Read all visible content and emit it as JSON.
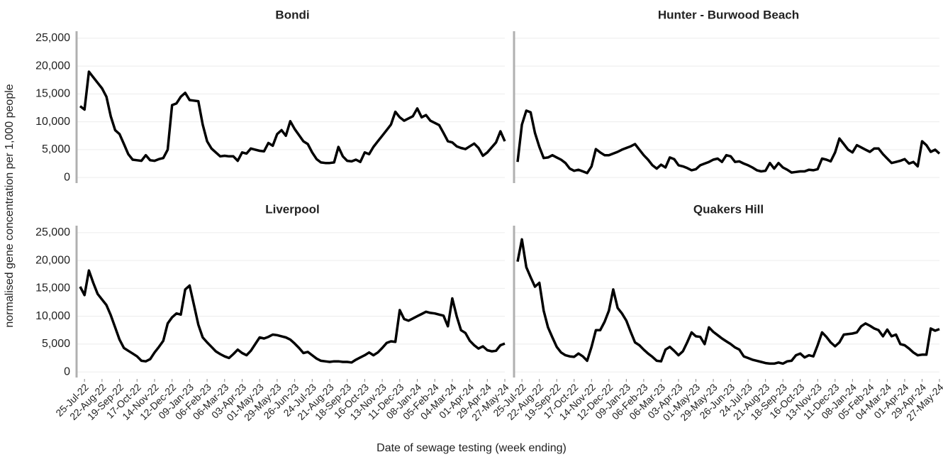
{
  "chart_data": {
    "type": "line",
    "y_label": "normalised gene concentration per 1,000 people",
    "x_label": "Date of sewage testing (week ending)",
    "grid": true,
    "ylim": [
      -1000,
      26000
    ],
    "yticks": [
      0,
      {
        "value": 5000,
        "label": "5,000"
      },
      {
        "value": 10000,
        "label": "10,000"
      },
      {
        "value": 15000,
        "label": "15,000"
      },
      {
        "value": 20000,
        "label": "20,000"
      },
      {
        "value": 25000,
        "label": "25,000"
      }
    ],
    "categories": [
      null,
      "25-Jul-22",
      null,
      null,
      null,
      "22-Aug-22",
      null,
      null,
      null,
      "19-Sep-22",
      null,
      null,
      null,
      "17-Oct-22",
      null,
      null,
      null,
      "14-Nov-22",
      null,
      null,
      null,
      "12-Dec-22",
      null,
      null,
      null,
      "09-Jan-23",
      null,
      null,
      null,
      "06-Feb-23",
      null,
      null,
      null,
      "06-Mar-23",
      null,
      null,
      null,
      "03-Apr-23",
      null,
      null,
      null,
      "01-May-23",
      null,
      null,
      null,
      "29-May-23",
      null,
      null,
      null,
      "26-Jun-23",
      null,
      null,
      null,
      "24-Jul-23",
      null,
      null,
      null,
      "21-Aug-23",
      null,
      null,
      null,
      "18-Sep-23",
      null,
      null,
      null,
      "16-Oct-23",
      null,
      null,
      null,
      "13-Nov-23",
      null,
      null,
      null,
      "11-Dec-23",
      null,
      null,
      null,
      "08-Jan-24",
      null,
      null,
      null,
      "05-Feb-24",
      null,
      null,
      null,
      "04-Mar-24",
      null,
      null,
      null,
      "01-Apr-24",
      null,
      null,
      null,
      "29-Apr-24",
      null,
      null,
      null,
      "27-May-24"
    ],
    "series": [
      {
        "name": "Bondi",
        "color": "#000000",
        "values": [
          12800,
          12200,
          19000,
          18000,
          17000,
          16000,
          14500,
          11000,
          8500,
          7800,
          6000,
          4200,
          3200,
          3100,
          3000,
          4000,
          3100,
          3000,
          3300,
          3500,
          5000,
          13000,
          13300,
          14500,
          15200,
          13900,
          13800,
          13700,
          9500,
          6500,
          5200,
          4500,
          3800,
          3900,
          3800,
          3800,
          3000,
          4500,
          4300,
          5200,
          5000,
          4800,
          4700,
          6200,
          5700,
          7800,
          8500,
          7500,
          10100,
          8700,
          7600,
          6500,
          6000,
          4500,
          3300,
          2700,
          2600,
          2600,
          2700,
          5500,
          3800,
          3000,
          2900,
          3200,
          2800,
          4500,
          4200,
          5500,
          6500,
          7500,
          8500,
          9500,
          11800,
          10800,
          10200,
          10600,
          11000,
          12400,
          10800,
          11200,
          10200,
          9800,
          9400,
          8000,
          6500,
          6300,
          5600,
          5300,
          5100,
          5600,
          6100,
          5300,
          3900,
          4500,
          5400,
          6300,
          8300,
          6500
        ]
      },
      {
        "name": "Hunter - Burwood Beach",
        "color": "#000000",
        "values": [
          2800,
          9500,
          12000,
          11700,
          8000,
          5500,
          3500,
          3600,
          4000,
          3600,
          3200,
          2600,
          1600,
          1200,
          1400,
          1100,
          800,
          2000,
          5100,
          4500,
          4000,
          4000,
          4300,
          4600,
          5000,
          5300,
          5600,
          6000,
          5000,
          4000,
          3200,
          2200,
          1600,
          2300,
          1800,
          3600,
          3300,
          2200,
          2000,
          1700,
          1300,
          1500,
          2200,
          2500,
          2800,
          3200,
          3400,
          2800,
          4000,
          3800,
          2800,
          2900,
          2500,
          2200,
          1800,
          1300,
          1100,
          1200,
          2600,
          1600,
          2600,
          1800,
          1400,
          900,
          1000,
          1100,
          1100,
          1400,
          1300,
          1500,
          3400,
          3200,
          2900,
          4500,
          7000,
          6000,
          5000,
          4500,
          5800,
          5400,
          5000,
          4600,
          5200,
          5200,
          4200,
          3400,
          2600,
          2800,
          3000,
          3300,
          2500,
          2800,
          2000,
          6500,
          5800,
          4600,
          5000,
          4300
        ]
      },
      {
        "name": "Liverpool",
        "color": "#000000",
        "values": [
          15300,
          13800,
          18200,
          16000,
          14000,
          13000,
          12000,
          10200,
          8000,
          5800,
          4300,
          3800,
          3300,
          2800,
          2000,
          1900,
          2300,
          3500,
          4500,
          5600,
          8700,
          9800,
          10500,
          10300,
          14800,
          15500,
          12000,
          8500,
          6200,
          5300,
          4500,
          3700,
          3200,
          2800,
          2500,
          3200,
          4000,
          3400,
          3000,
          3800,
          5000,
          6200,
          6000,
          6300,
          6700,
          6600,
          6400,
          6200,
          5800,
          5100,
          4300,
          3400,
          3600,
          3000,
          2400,
          2000,
          1900,
          1800,
          1900,
          1900,
          1800,
          1800,
          1700,
          2200,
          2600,
          3000,
          3500,
          3000,
          3500,
          4300,
          5200,
          5500,
          5400,
          11100,
          9500,
          9200,
          9600,
          10000,
          10400,
          10800,
          10600,
          10500,
          10300,
          10100,
          8200,
          13200,
          10000,
          7500,
          7000,
          5600,
          4800,
          4200,
          4600,
          3900,
          3700,
          3800,
          4800,
          5100
        ]
      },
      {
        "name": "Quakers Hill",
        "color": "#000000",
        "values": [
          19800,
          23800,
          18800,
          17000,
          15300,
          16000,
          11000,
          8000,
          6200,
          4500,
          3500,
          3000,
          2800,
          2700,
          3300,
          2800,
          2000,
          4500,
          7500,
          7500,
          9000,
          11000,
          14800,
          11500,
          10500,
          9200,
          7200,
          5300,
          4800,
          4000,
          3300,
          2700,
          2000,
          1900,
          4000,
          4500,
          3800,
          3000,
          3700,
          5300,
          7100,
          6400,
          6300,
          5000,
          8000,
          7200,
          6600,
          6000,
          5500,
          5000,
          4400,
          4000,
          2800,
          2500,
          2200,
          2000,
          1800,
          1600,
          1500,
          1500,
          1700,
          1500,
          1900,
          2000,
          3000,
          3300,
          2600,
          3000,
          2800,
          4800,
          7100,
          6300,
          5300,
          4600,
          5300,
          6700,
          6800,
          6900,
          7100,
          8200,
          8700,
          8300,
          7800,
          7500,
          6400,
          7600,
          6400,
          6700,
          5000,
          4800,
          4200,
          3500,
          3000,
          3100,
          3100,
          7800,
          7400,
          7700
        ]
      }
    ]
  }
}
